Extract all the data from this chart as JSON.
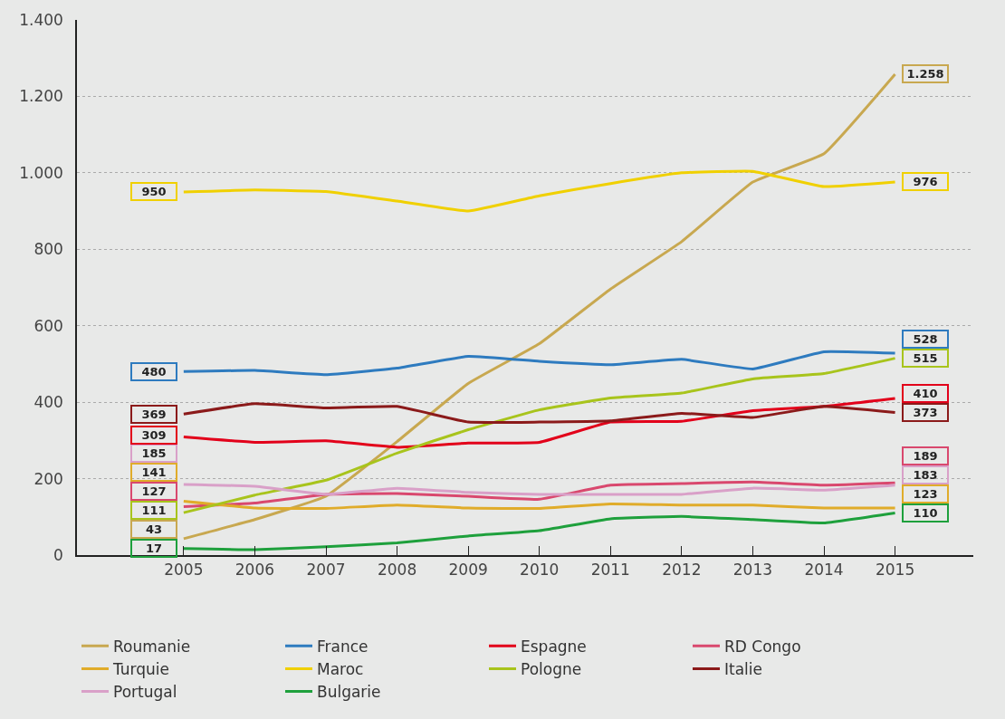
{
  "chart_data": {
    "type": "line",
    "x": [
      2005,
      2006,
      2007,
      2008,
      2009,
      2010,
      2011,
      2012,
      2013,
      2014,
      2015
    ],
    "xlim": [
      2003.5,
      2016.1
    ],
    "xticks": [
      2005,
      2006,
      2007,
      2008,
      2009,
      2010,
      2011,
      2012,
      2013,
      2014,
      2015
    ],
    "ylim": [
      0,
      1400
    ],
    "yticks": [
      0,
      {
        "value": 200,
        "label": "200"
      },
      {
        "value": 400,
        "label": "400"
      },
      {
        "value": 600,
        "label": "600"
      },
      {
        "value": 800,
        "label": "800"
      },
      {
        "value": 1000,
        "label": "1.000"
      },
      {
        "value": 1200,
        "label": "1.200"
      },
      {
        "value": 1400,
        "label": "1.400"
      }
    ],
    "grid": "y",
    "legend": "bottom",
    "marker": "none",
    "line_style": "solid",
    "series": [
      {
        "name": "Roumanie",
        "color": "#c8a850",
        "values": [
          43,
          93,
          154,
          297,
          449,
          553,
          696,
          820,
          976,
          1050,
          1258
        ],
        "value_labels": [
          "43",
          null,
          null,
          null,
          null,
          null,
          null,
          null,
          null,
          null,
          "1.258"
        ]
      },
      {
        "name": "France",
        "color": "#2e7bbf",
        "values": [
          480,
          483,
          472,
          489,
          520,
          507,
          498,
          512,
          487,
          532,
          528
        ],
        "value_labels": [
          "480",
          null,
          null,
          null,
          null,
          null,
          null,
          null,
          null,
          null,
          "528"
        ]
      },
      {
        "name": "Espagne",
        "color": "#e2001a",
        "values": [
          309,
          295,
          299,
          282,
          293,
          295,
          348,
          350,
          378,
          389,
          410
        ],
        "value_labels": [
          "309",
          null,
          null,
          null,
          null,
          null,
          null,
          null,
          null,
          null,
          "410"
        ]
      },
      {
        "name": "RD Congo",
        "color": "#d9486e",
        "values": [
          127,
          136,
          159,
          161,
          154,
          146,
          183,
          187,
          191,
          183,
          189
        ],
        "value_labels": [
          "127",
          null,
          null,
          null,
          null,
          null,
          null,
          null,
          null,
          null,
          "189"
        ]
      },
      {
        "name": "Turquie",
        "color": "#e0ac2a",
        "values": [
          141,
          123,
          122,
          131,
          123,
          122,
          134,
          131,
          131,
          123,
          123
        ],
        "value_labels": [
          "141",
          null,
          null,
          null,
          null,
          null,
          null,
          null,
          null,
          null,
          "123"
        ]
      },
      {
        "name": "Maroc",
        "color": "#f0d000",
        "values": [
          950,
          955,
          951,
          926,
          900,
          940,
          972,
          1000,
          1004,
          964,
          976
        ],
        "value_labels": [
          "950",
          null,
          null,
          null,
          null,
          null,
          null,
          null,
          null,
          null,
          "976"
        ]
      },
      {
        "name": "Pologne",
        "color": "#a8c41c",
        "values": [
          111,
          157,
          196,
          267,
          328,
          380,
          411,
          424,
          461,
          475,
          515
        ],
        "value_labels": [
          "111",
          null,
          null,
          null,
          null,
          null,
          null,
          null,
          null,
          null,
          "515"
        ]
      },
      {
        "name": "Italie",
        "color": "#8b1a1a",
        "values": [
          369,
          396,
          385,
          389,
          348,
          348,
          351,
          371,
          360,
          389,
          373
        ],
        "value_labels": [
          "369",
          null,
          null,
          null,
          null,
          null,
          null,
          null,
          null,
          null,
          "373"
        ]
      },
      {
        "name": "Portugal",
        "color": "#d9a0c8",
        "values": [
          185,
          180,
          159,
          175,
          164,
          159,
          159,
          159,
          175,
          170,
          183
        ],
        "value_labels": [
          "185",
          null,
          null,
          null,
          null,
          null,
          null,
          null,
          null,
          null,
          "183"
        ]
      },
      {
        "name": "Bulgarie",
        "color": "#1ea03c",
        "values": [
          17,
          14,
          22,
          32,
          50,
          64,
          95,
          101,
          93,
          84,
          110
        ],
        "value_labels": [
          "17",
          null,
          null,
          null,
          null,
          null,
          null,
          null,
          null,
          null,
          "110"
        ]
      }
    ]
  }
}
